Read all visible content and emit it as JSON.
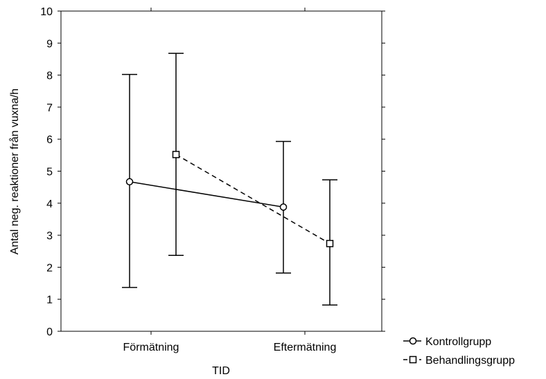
{
  "chart_data": {
    "type": "line",
    "xlabel": "TID",
    "ylabel": "Antal neg. reaktioner från vuxna/h",
    "categories": [
      "Förmätning",
      "Eftermätning"
    ],
    "ylim": [
      0,
      10
    ],
    "yticks": [
      0,
      1,
      2,
      3,
      4,
      5,
      6,
      7,
      8,
      9,
      10
    ],
    "grid": false,
    "legend_position": "bottom-right, outside plot",
    "series": [
      {
        "name": "Kontrollgrupp",
        "marker": "circle",
        "line_style": "solid",
        "values": [
          4.67,
          3.88
        ],
        "error_low": [
          1.37,
          1.82
        ],
        "error_high": [
          8.02,
          5.93
        ]
      },
      {
        "name": "Behandlingsgrupp",
        "marker": "square",
        "line_style": "dashed",
        "values": [
          5.52,
          2.74
        ],
        "error_low": [
          2.37,
          0.82
        ],
        "error_high": [
          8.68,
          4.73
        ]
      }
    ]
  }
}
